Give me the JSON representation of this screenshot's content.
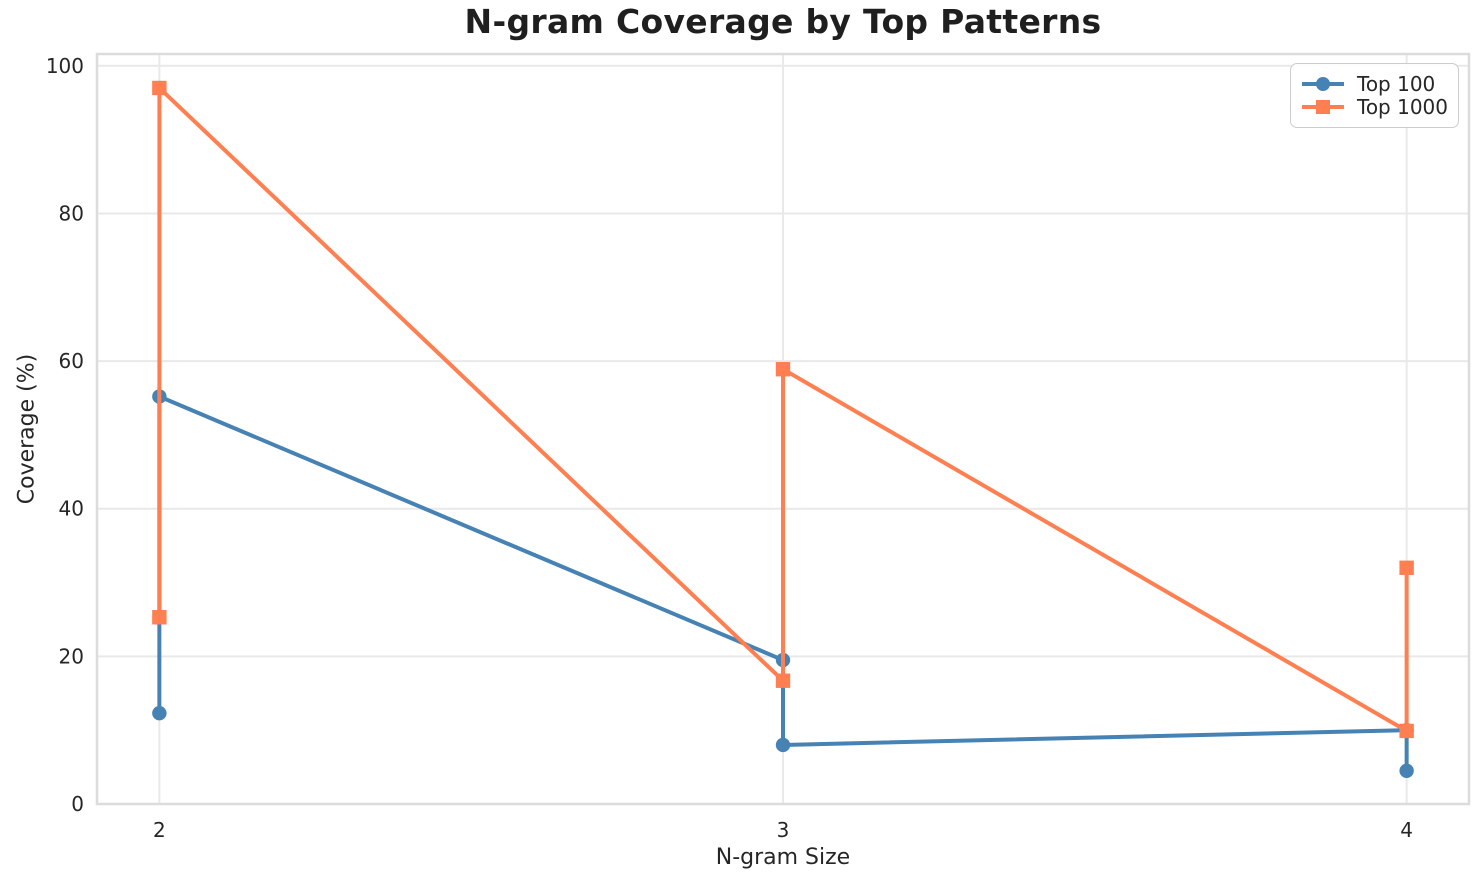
{
  "chart_data": {
    "type": "line",
    "title": "N-gram Coverage by Top Patterns",
    "xlabel": "N-gram Size",
    "ylabel": "Coverage (%)",
    "x_ticks": [
      2,
      3,
      4
    ],
    "y_ticks": [
      0,
      20,
      40,
      60,
      80,
      100
    ],
    "xlim": [
      1.9,
      4.1
    ],
    "ylim": [
      0,
      101.6
    ],
    "grid": true,
    "legend_position": "upper right",
    "series": [
      {
        "name": "Top 100",
        "color": "#4682B4",
        "marker": "circle",
        "points": [
          [
            2,
            12.3
          ],
          [
            2,
            55.2
          ],
          [
            3,
            19.5
          ],
          [
            3,
            8.0
          ],
          [
            4,
            10.0
          ],
          [
            4,
            4.5
          ]
        ]
      },
      {
        "name": "Top 1000",
        "color": "#FF7F50",
        "marker": "square",
        "points": [
          [
            2,
            25.3
          ],
          [
            2,
            97.0
          ],
          [
            3,
            16.7
          ],
          [
            3,
            58.9
          ],
          [
            4,
            9.9
          ],
          [
            4,
            32.0
          ]
        ]
      }
    ]
  },
  "styles": {
    "text_color": "#262626",
    "title_color": "#1f1f1f",
    "grid_color": "#e9e9e9",
    "spine_color": "#dcdcdc",
    "background": "#ffffff"
  }
}
